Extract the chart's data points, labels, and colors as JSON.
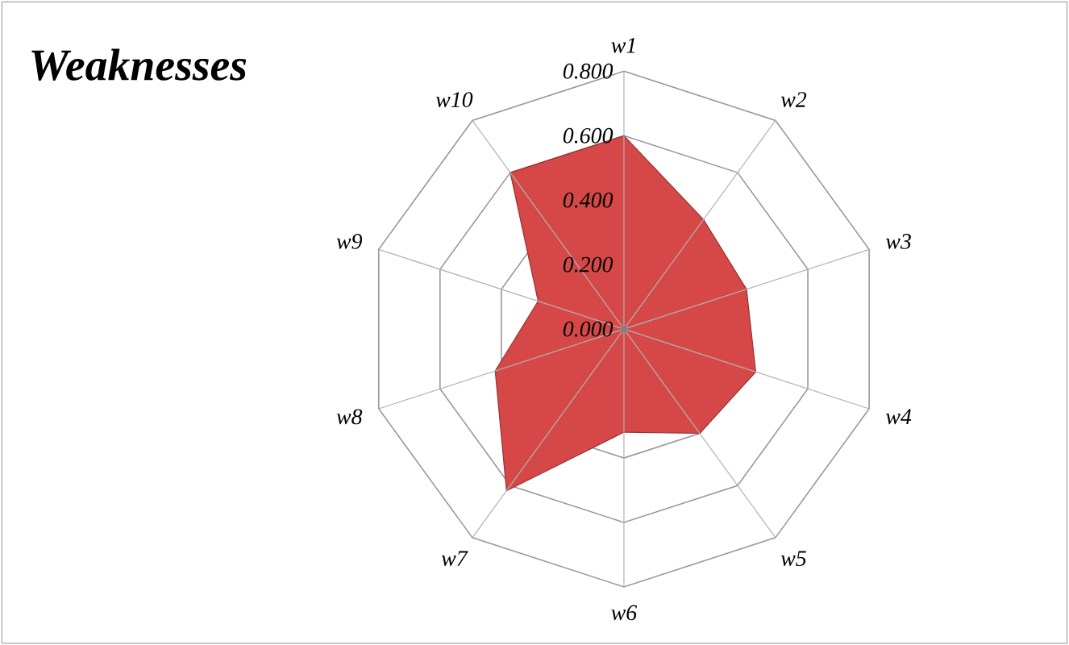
{
  "chart_data": {
    "type": "radar",
    "title": "Weaknesses",
    "categories": [
      "w1",
      "w2",
      "w3",
      "w4",
      "w5",
      "w6",
      "w7",
      "w8",
      "w9",
      "w10"
    ],
    "series": [
      {
        "color": "#d64848",
        "values": [
          0.6,
          0.42,
          0.4,
          0.43,
          0.4,
          0.32,
          0.62,
          0.42,
          0.28,
          0.6
        ]
      }
    ],
    "ylim": [
      0,
      0.8
    ],
    "yticks": [
      {
        "value": 0,
        "label": "0.000"
      },
      {
        "value": 0.2,
        "label": "0.200"
      },
      {
        "value": 0.4,
        "label": "0.400"
      },
      {
        "value": 0.6,
        "label": "0.600"
      },
      {
        "value": 0.8,
        "label": "0.800"
      }
    ]
  }
}
